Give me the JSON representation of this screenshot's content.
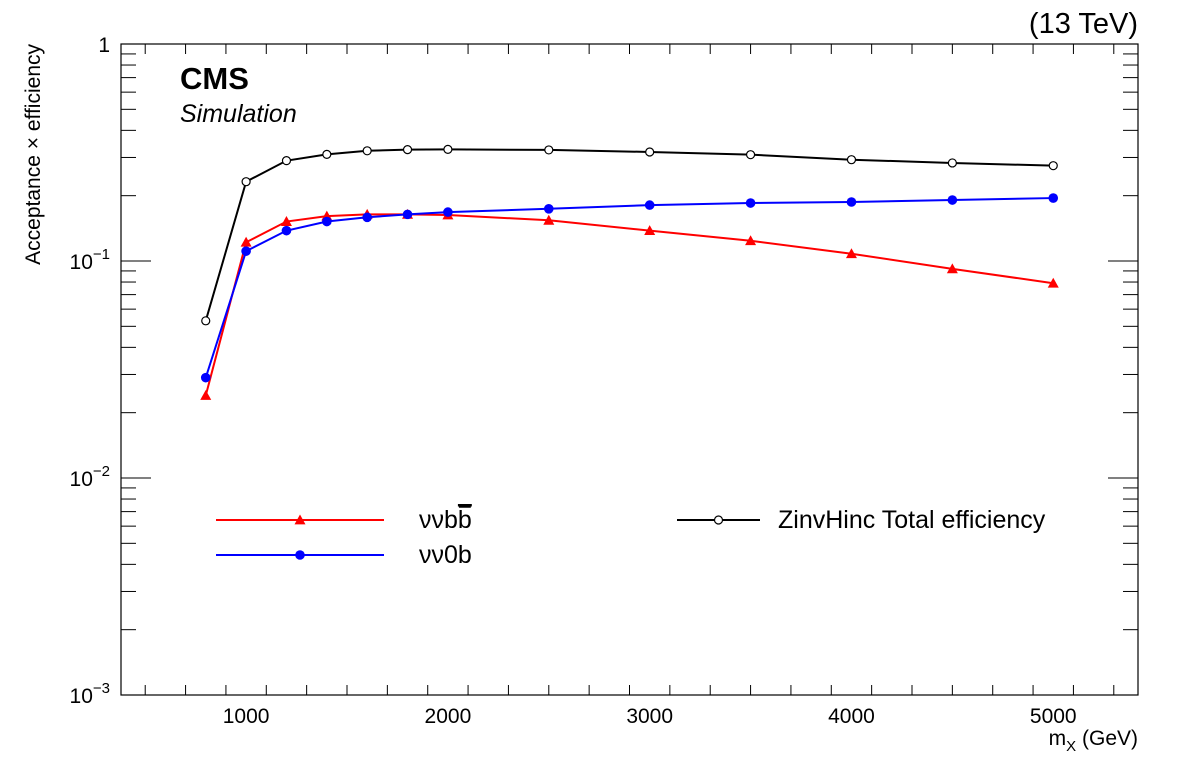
{
  "header": {
    "energy_label": "(13 TeV)",
    "experiment": "CMS",
    "status": "Simulation"
  },
  "chart_data": {
    "type": "line",
    "xlabel": "m_X (GeV)",
    "xlabel_main": "m",
    "xlabel_sub": "X",
    "xlabel_unit": " (GeV)",
    "ylabel": "Acceptance × efficiency",
    "yscale": "log",
    "xlim": [
      380,
      5420
    ],
    "ylim": [
      0.001,
      1
    ],
    "x_ticks": [
      1000,
      2000,
      3000,
      4000,
      5000
    ],
    "y_tick_labels": [
      {
        "value": 1,
        "base": "1",
        "exp": ""
      },
      {
        "value": 0.1,
        "base": "10",
        "exp": "−1"
      },
      {
        "value": 0.01,
        "base": "10",
        "exp": "−2"
      },
      {
        "value": 0.001,
        "base": "10",
        "exp": "−3"
      }
    ],
    "grid": false,
    "legend_placement": "lower-middle",
    "series": [
      {
        "name": "ννbb̄",
        "legend_base": "ννb",
        "legend_bar": "b",
        "color": "#ff0000",
        "marker": "triangle",
        "x": [
          800,
          1000,
          1200,
          1400,
          1600,
          1800,
          2000,
          2500,
          3000,
          3500,
          4000,
          4500,
          5000
        ],
        "y": [
          0.024,
          0.122,
          0.152,
          0.161,
          0.164,
          0.164,
          0.163,
          0.154,
          0.138,
          0.124,
          0.108,
          0.092,
          0.079
        ]
      },
      {
        "name": "νν0b",
        "legend_base": "νν0b",
        "legend_bar": "",
        "color": "#0000ff",
        "marker": "circle",
        "x": [
          800,
          1000,
          1200,
          1400,
          1600,
          1800,
          2000,
          2500,
          3000,
          3500,
          4000,
          4500,
          5000
        ],
        "y": [
          0.029,
          0.111,
          0.138,
          0.152,
          0.159,
          0.164,
          0.168,
          0.174,
          0.181,
          0.185,
          0.187,
          0.191,
          0.195
        ]
      },
      {
        "name": "ZinvHinc Total efficiency",
        "legend_base": "ZinvHinc Total efficiency",
        "legend_bar": "",
        "color": "#000000",
        "marker": "open-circle",
        "x": [
          800,
          1000,
          1200,
          1400,
          1600,
          1800,
          2000,
          2500,
          3000,
          3500,
          4000,
          4500,
          5000
        ],
        "y": [
          0.053,
          0.232,
          0.29,
          0.31,
          0.322,
          0.326,
          0.327,
          0.325,
          0.318,
          0.309,
          0.293,
          0.283,
          0.275
        ]
      }
    ]
  }
}
